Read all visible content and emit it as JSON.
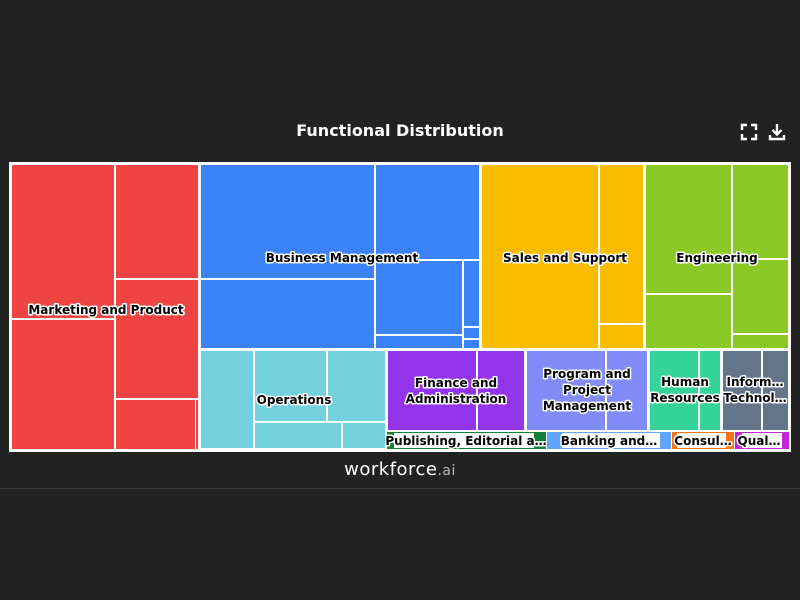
{
  "title": "Functional Distribution",
  "toolbar": {
    "fullscreen_icon": "expand-icon",
    "download_icon": "download-icon"
  },
  "brand": {
    "name": "workforce",
    "suffix": ".ai"
  },
  "chart_data": {
    "type": "treemap",
    "title": "Functional Distribution",
    "categories": [
      {
        "label": "Marketing and Product",
        "value": 19.0,
        "color": "#ef4444"
      },
      {
        "label": "Business Management",
        "value": 17.8,
        "color": "#3b82f6"
      },
      {
        "label": "Sales and Support",
        "value": 10.5,
        "color": "#fbbc04"
      },
      {
        "label": "Engineering",
        "value": 10.6,
        "color": "#8ac926"
      },
      {
        "label": "Operations",
        "value": 8.4,
        "color": "#72d1dd"
      },
      {
        "label": "Finance and Administration",
        "value": 5.3,
        "color": "#9333ea"
      },
      {
        "label": "Program and Project Management",
        "value": 5.0,
        "color": "#818cf8"
      },
      {
        "label": "Human Resources",
        "value": 2.7,
        "color": "#34d399"
      },
      {
        "label": "Information Technology",
        "value": 2.6,
        "color": "#64748b"
      },
      {
        "label": "Publishing, Editorial and Reporting",
        "value": 0.9,
        "color": "#15803d"
      },
      {
        "label": "Banking and Finance",
        "value": 0.8,
        "color": "#60a5fa"
      },
      {
        "label": "Consulting",
        "value": 0.4,
        "color": "#f97316"
      },
      {
        "label": "Quality Assurance",
        "value": 0.3,
        "color": "#c026d3"
      }
    ]
  }
}
